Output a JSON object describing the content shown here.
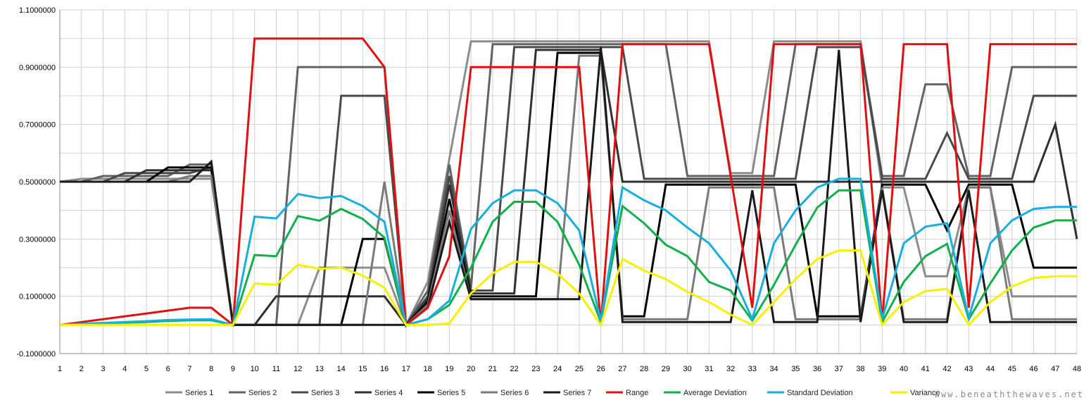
{
  "watermark": "www.beneaththewaves.net",
  "chart_data": {
    "type": "line",
    "title": "",
    "xlabel": "",
    "ylabel": "",
    "ylim": [
      -0.1,
      1.1
    ],
    "yticks": [
      "-0.1000000",
      "0.1000000",
      "0.3000000",
      "0.5000000",
      "0.7000000",
      "0.9000000",
      "1.1000000"
    ],
    "ytick_values": [
      -0.1,
      0.1,
      0.3,
      0.5,
      0.7,
      0.9,
      1.1
    ],
    "x": [
      1,
      2,
      3,
      4,
      5,
      6,
      7,
      8,
      9,
      10,
      11,
      12,
      13,
      14,
      15,
      16,
      17,
      18,
      19,
      20,
      21,
      22,
      23,
      24,
      25,
      26,
      27,
      28,
      29,
      30,
      31,
      32,
      33,
      34,
      35,
      36,
      37,
      38,
      39,
      40,
      41,
      42,
      43,
      44,
      45,
      46,
      47,
      48
    ],
    "grid": "vertical-and-horizontal",
    "legend_position": "bottom",
    "series": [
      {
        "name": "Series 1",
        "color": "#8c8c8c",
        "values": [
          0.5,
          0.51,
          0.51,
          0.51,
          0.51,
          0.51,
          0.51,
          0.51,
          0,
          0,
          0,
          0,
          0.2,
          0.2,
          0.2,
          0.2,
          0,
          0.15,
          0.58,
          0.99,
          0.99,
          0.99,
          0.99,
          0.99,
          0.99,
          0.99,
          0.99,
          0.99,
          0.99,
          0.99,
          0.99,
          0.53,
          0.53,
          0.99,
          0.99,
          0.99,
          0.99,
          0.99,
          0.48,
          0.48,
          0.17,
          0.17,
          0.48,
          0.48,
          0.1,
          0.1,
          0.1,
          0.1
        ]
      },
      {
        "name": "Series 2",
        "color": "#636363",
        "values": [
          0.5,
          0.5,
          0.52,
          0.52,
          0.52,
          0.52,
          0.56,
          0.56,
          0,
          0,
          0,
          0.9,
          0.9,
          0.9,
          0.9,
          0.9,
          0,
          0.12,
          0.56,
          0.13,
          0.98,
          0.98,
          0.98,
          0.98,
          0.98,
          0.98,
          0.98,
          0.98,
          0.98,
          0.52,
          0.52,
          0.52,
          0.52,
          0.52,
          0.98,
          0.98,
          0.98,
          0.98,
          0.52,
          0.52,
          0.84,
          0.84,
          0.52,
          0.52,
          0.9,
          0.9,
          0.9,
          0.9
        ]
      },
      {
        "name": "Series 3",
        "color": "#4a4a4a",
        "values": [
          0.5,
          0.5,
          0.5,
          0.53,
          0.53,
          0.53,
          0.53,
          0.55,
          0,
          0,
          0,
          0,
          0,
          0.8,
          0.8,
          0.8,
          0,
          0.1,
          0.52,
          0.12,
          0.12,
          0.97,
          0.97,
          0.97,
          0.97,
          0.97,
          0.97,
          0.51,
          0.51,
          0.51,
          0.51,
          0.51,
          0.51,
          0.51,
          0.51,
          0.97,
          0.97,
          0.97,
          0.51,
          0.51,
          0.51,
          0.67,
          0.51,
          0.51,
          0.51,
          0.8,
          0.8,
          0.8
        ]
      },
      {
        "name": "Series 4",
        "color": "#303030",
        "values": [
          0.5,
          0.5,
          0.5,
          0.5,
          0.54,
          0.54,
          0.54,
          0.54,
          0,
          0,
          0.1,
          0.1,
          0.1,
          0.1,
          0.1,
          0.1,
          0,
          0.09,
          0.49,
          0.11,
          0.11,
          0.11,
          0.96,
          0.96,
          0.96,
          0.96,
          0.5,
          0.5,
          0.5,
          0.5,
          0.5,
          0.5,
          0.5,
          0.5,
          0.5,
          0.5,
          0.5,
          0.5,
          0.5,
          0.5,
          0.5,
          0.5,
          0.5,
          0.5,
          0.5,
          0.5,
          0.7,
          0.3
        ]
      },
      {
        "name": "Series 5",
        "color": "#000000",
        "values": [
          0.5,
          0.5,
          0.5,
          0.5,
          0.5,
          0.55,
          0.55,
          0.55,
          0,
          0,
          0,
          0,
          0,
          0,
          0.3,
          0.3,
          0,
          0.08,
          0.44,
          0.1,
          0.1,
          0.1,
          0.1,
          0.95,
          0.95,
          0.95,
          0.03,
          0.03,
          0.49,
          0.49,
          0.49,
          0.49,
          0.49,
          0.49,
          0.49,
          0.03,
          0.03,
          0.03,
          0.49,
          0.49,
          0.49,
          0.33,
          0.49,
          0.49,
          0.49,
          0.2,
          0.2,
          0.2
        ]
      },
      {
        "name": "Series 6",
        "color": "#7a7a7a",
        "values": [
          0.5,
          0.5,
          0.5,
          0.5,
          0.5,
          0.5,
          0.52,
          0.52,
          0,
          0,
          0,
          0,
          0,
          0,
          0,
          0.5,
          0,
          0.07,
          0.4,
          0.09,
          0.09,
          0.09,
          0.09,
          0.09,
          0.94,
          0.94,
          0.02,
          0.02,
          0.02,
          0.02,
          0.48,
          0.48,
          0.48,
          0.48,
          0.02,
          0.02,
          0.02,
          0.02,
          0.48,
          0.02,
          0.02,
          0.02,
          0.48,
          0.48,
          0.02,
          0.02,
          0.02,
          0.02
        ]
      },
      {
        "name": "Series 7",
        "color": "#1a1a1a",
        "values": [
          0.5,
          0.5,
          0.5,
          0.5,
          0.5,
          0.5,
          0.5,
          0.57,
          0,
          0,
          0,
          0,
          0,
          0,
          0,
          0,
          0,
          0.06,
          0.36,
          0.09,
          0.09,
          0.09,
          0.09,
          0.09,
          0.09,
          0.97,
          0.01,
          0.01,
          0.01,
          0.01,
          0.01,
          0.01,
          0.47,
          0.01,
          0.01,
          0.01,
          0.96,
          0.01,
          0.47,
          0.01,
          0.01,
          0.01,
          0.47,
          0.01,
          0.01,
          0.01,
          0.01,
          0.01
        ]
      },
      {
        "name": "Range",
        "color": "#e01010",
        "values": [
          0,
          0.01,
          0.02,
          0.03,
          0.04,
          0.05,
          0.06,
          0.06,
          0,
          1,
          1,
          1,
          1,
          1,
          1,
          0.9,
          0,
          0.06,
          0.24,
          0.9,
          0.9,
          0.9,
          0.9,
          0.9,
          0.9,
          0,
          0.98,
          0.98,
          0.98,
          0.98,
          0.98,
          0.52,
          0.06,
          0.98,
          0.98,
          0.98,
          0.98,
          0.98,
          0.01,
          0.98,
          0.98,
          0.98,
          0.06,
          0.98,
          0.98,
          0.98,
          0.98,
          0.98
        ]
      },
      {
        "name": "Average Deviation",
        "color": "#11b04a",
        "values": [
          0,
          0.003,
          0.006,
          0.008,
          0.01,
          0.014,
          0.016,
          0.016,
          0,
          0.244,
          0.24,
          0.38,
          0.364,
          0.405,
          0.37,
          0.305,
          0,
          0.02,
          0.07,
          0.2,
          0.36,
          0.43,
          0.43,
          0.36,
          0.21,
          0.01,
          0.415,
          0.355,
          0.28,
          0.24,
          0.15,
          0.12,
          0.015,
          0.14,
          0.28,
          0.41,
          0.47,
          0.47,
          0.01,
          0.15,
          0.24,
          0.283,
          0.02,
          0.145,
          0.26,
          0.34,
          0.365,
          0.365
        ]
      },
      {
        "name": "Standard Deviation",
        "color": "#17aee0",
        "values": [
          0,
          0.004,
          0.007,
          0.01,
          0.013,
          0.017,
          0.019,
          0.02,
          0,
          0.378,
          0.372,
          0.457,
          0.443,
          0.45,
          0.415,
          0.36,
          0,
          0.02,
          0.085,
          0.335,
          0.425,
          0.47,
          0.47,
          0.425,
          0.33,
          0.015,
          0.48,
          0.435,
          0.4,
          0.34,
          0.285,
          0.19,
          0.02,
          0.285,
          0.4,
          0.48,
          0.51,
          0.51,
          0.02,
          0.285,
          0.343,
          0.355,
          0.025,
          0.285,
          0.365,
          0.405,
          0.412,
          0.412
        ]
      },
      {
        "name": "Variance",
        "color": "#f7f000",
        "values": [
          0,
          0,
          0,
          0,
          0,
          0,
          0,
          0,
          0,
          0.145,
          0.14,
          0.21,
          0.196,
          0.2,
          0.172,
          0.13,
          0,
          0,
          0.005,
          0.11,
          0.18,
          0.22,
          0.22,
          0.18,
          0.11,
          0,
          0.23,
          0.19,
          0.16,
          0.115,
          0.08,
          0.036,
          0,
          0.08,
          0.16,
          0.23,
          0.26,
          0.26,
          0,
          0.08,
          0.118,
          0.126,
          0,
          0.08,
          0.134,
          0.164,
          0.17,
          0.17
        ]
      }
    ]
  }
}
